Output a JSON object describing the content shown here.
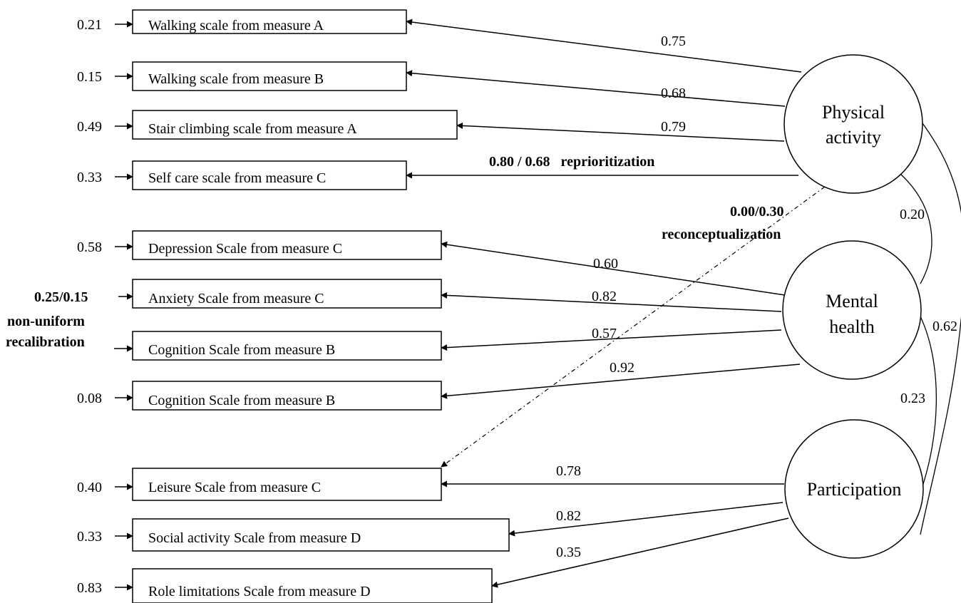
{
  "indicators": [
    {
      "label": "Walking scale from measure  A",
      "error": "0.21"
    },
    {
      "label": "Walking scale from measure B",
      "error": "0.15"
    },
    {
      "label": "Stair climbing scale from measure A",
      "error": "0.49"
    },
    {
      "label": "Self care scale from measure C",
      "error": "0.33"
    },
    {
      "label": "Depression Scale from measure C",
      "error": "0.58"
    },
    {
      "label": "Anxiety Scale from measure C",
      "error": "0.25/0.15"
    },
    {
      "label": "Cognition Scale from measure B",
      "error": ""
    },
    {
      "label": "Cognition Scale from measure B",
      "error": "0.08"
    },
    {
      "label": "Leisure Scale from measure C",
      "error": "0.40"
    },
    {
      "label": "Social activity Scale from measure D",
      "error": "0.33"
    },
    {
      "label": "Role limitations Scale from measure D",
      "error": "0.83"
    }
  ],
  "factors": [
    {
      "line1": "Physical",
      "line2": "activity"
    },
    {
      "line1": "Mental",
      "line2": "health"
    },
    {
      "line1": "Participation",
      "line2": ""
    }
  ],
  "loadings": [
    "0.75",
    "0.68",
    "0.79",
    "0.80 / 0.68   reprioritization",
    "0.60",
    "0.82",
    "0.57",
    "0.92",
    "0.78",
    "0.82",
    "0.35"
  ],
  "recalibration": {
    "line1": "non-uniform",
    "line2": "recalibration"
  },
  "reconceptualization": {
    "value": "0.00/0.30",
    "label": "reconceptualization"
  },
  "correlations": [
    "0.20",
    "0.23",
    "0.62"
  ]
}
